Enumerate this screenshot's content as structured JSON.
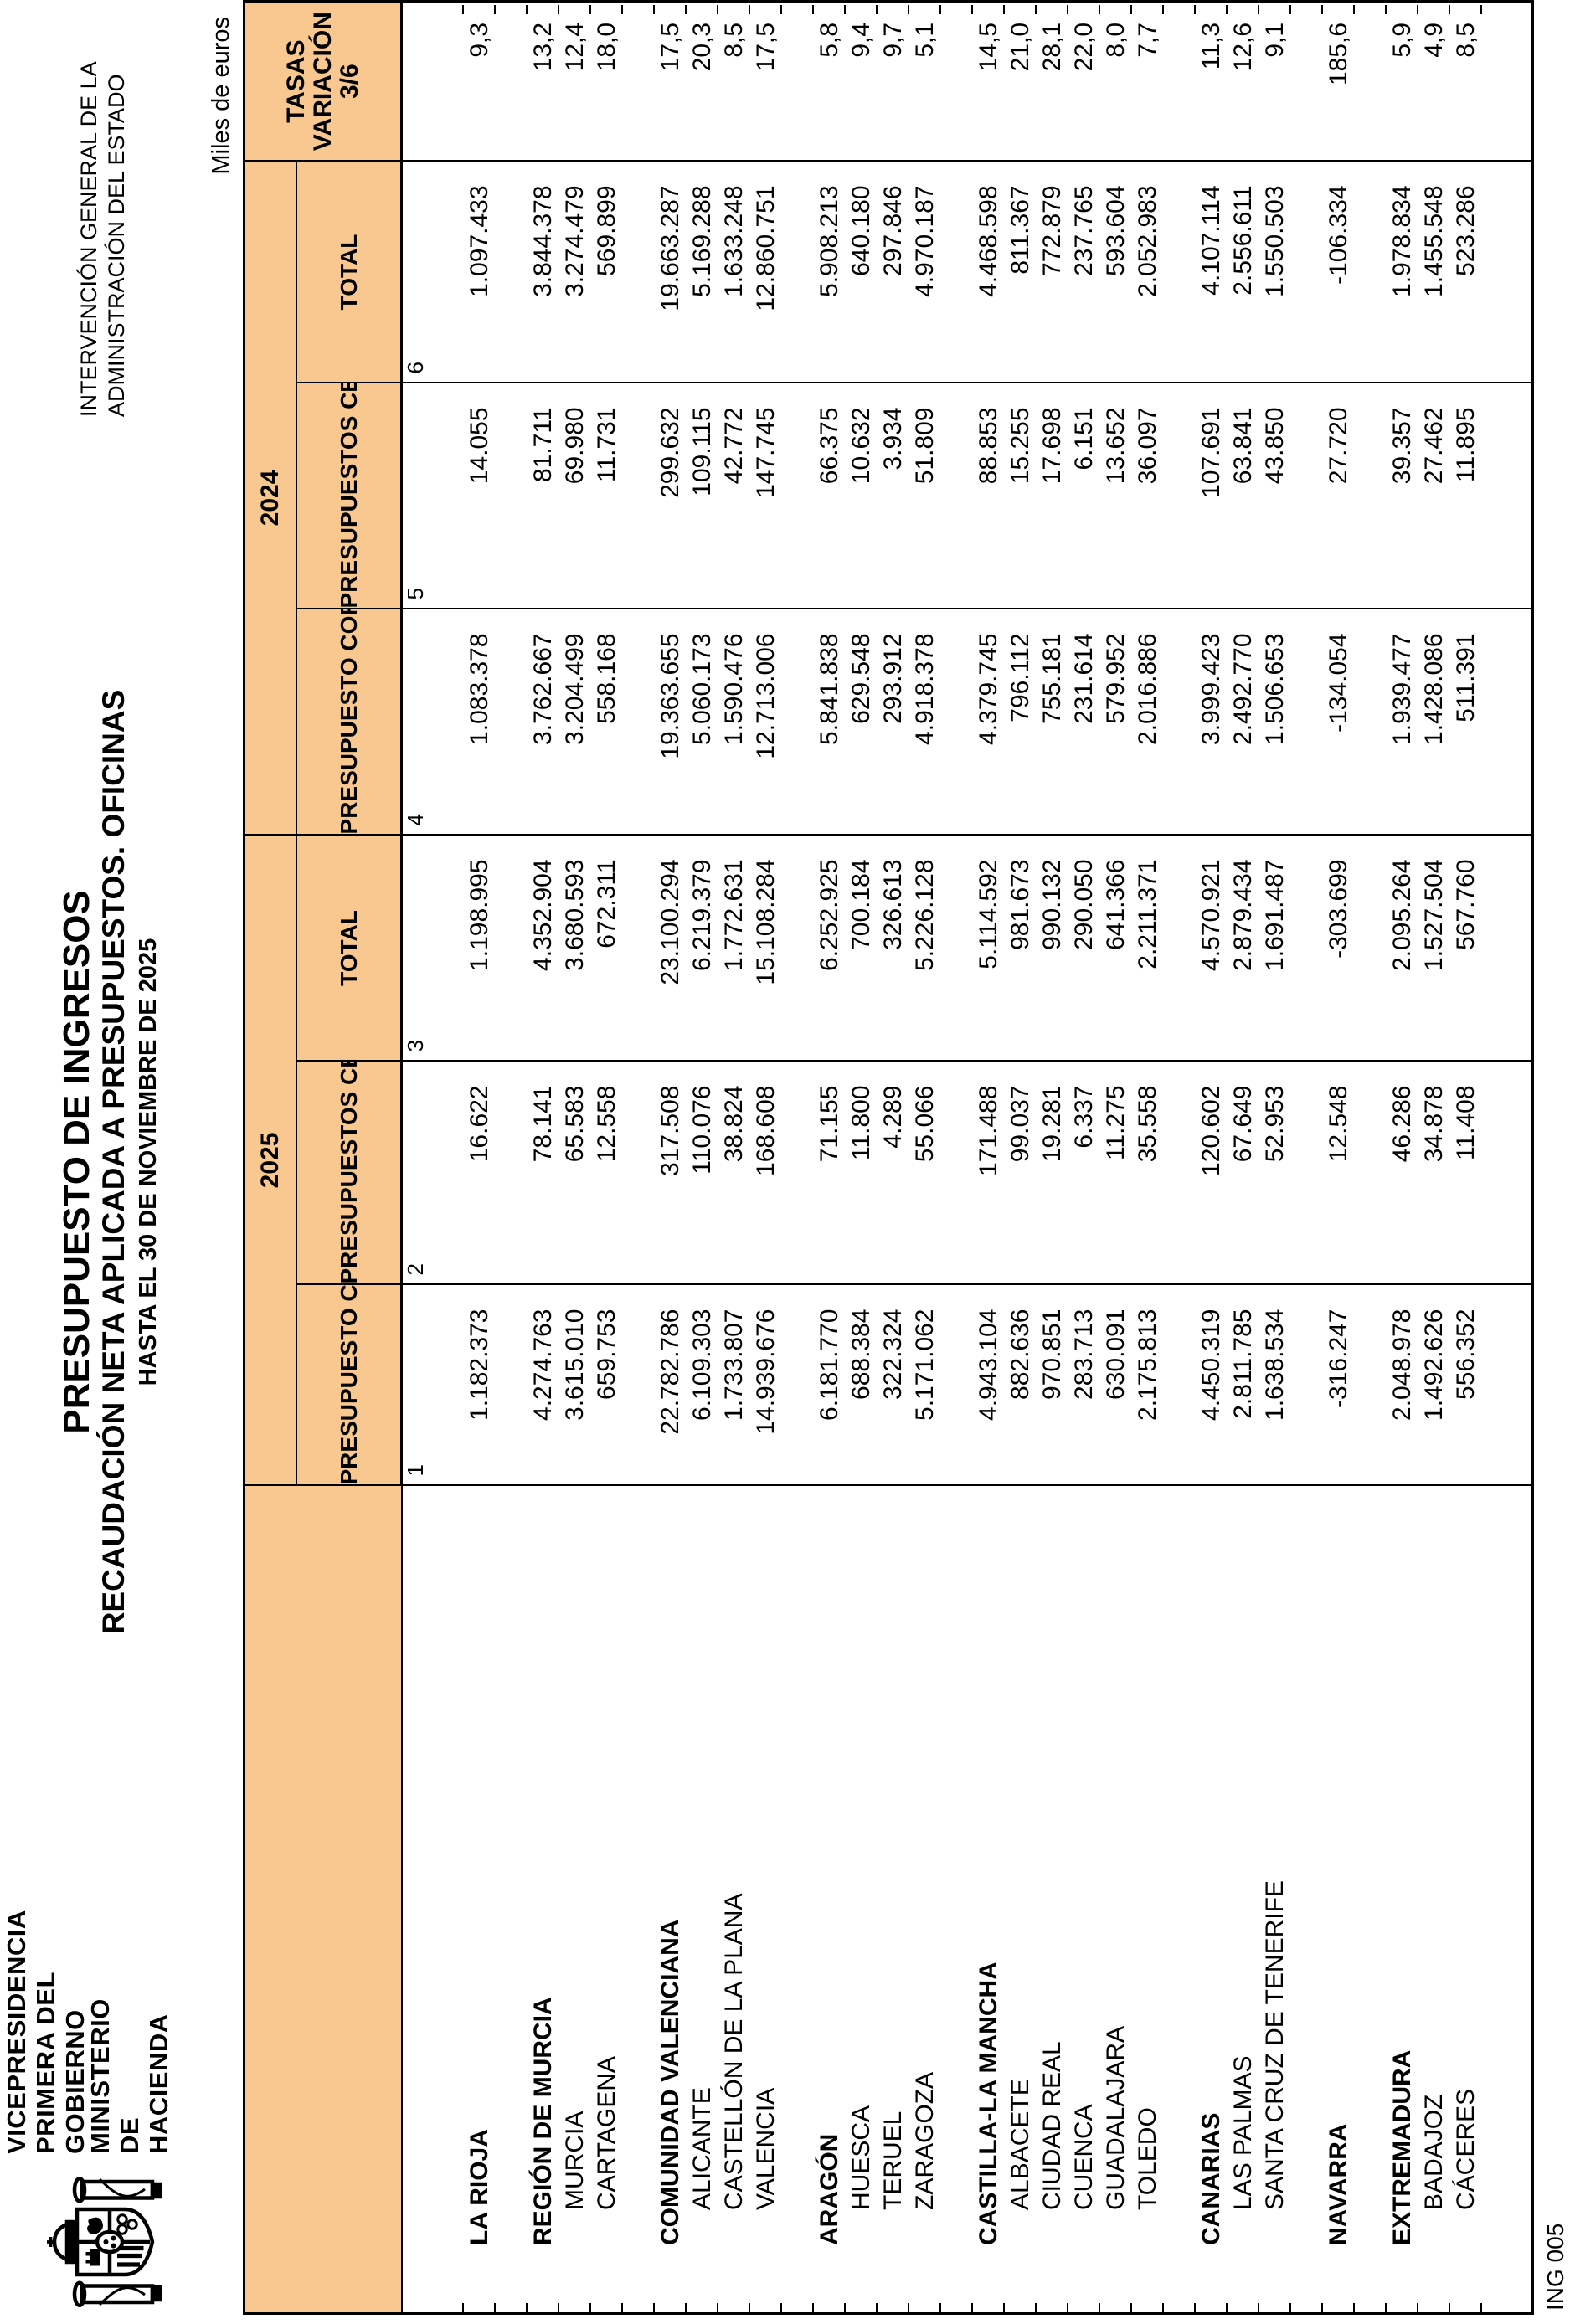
{
  "page": {
    "department": [
      "VICEPRESIDENCIA",
      "PRIMERA DEL GOBIERNO"
    ],
    "ministry": [
      "MINISTERIO",
      "DE HACIENDA"
    ],
    "agency": [
      "INTERVENCIÓN GENERAL DE LA",
      "ADMINISTRACIÓN DEL ESTADO"
    ],
    "title": "PRESUPUESTO DE INGRESOS",
    "subtitle": "RECAUDACIÓN NETA APLICADA A PRESUPUESTOS. OFICINAS",
    "period": "HASTA EL 30 DE NOVIEMBRE DE 2025",
    "units_note": "Miles de euros",
    "form_code": "ING 005"
  },
  "colors": {
    "header_fill": "#F9C891",
    "border": "#000000",
    "text": "#000000"
  },
  "table": {
    "groups": [
      {
        "year": "2025",
        "columns": [
          "PRESUPUESTO CORRIENTE",
          "PRESUPUESTOS CERRADOS",
          "TOTAL"
        ]
      },
      {
        "year": "2024",
        "columns": [
          "PRESUPUESTO CORRIENTE",
          "PRESUPUESTOS CERRADOS",
          "TOTAL"
        ]
      }
    ],
    "variation_header": [
      "TASAS",
      "VARIACIÓN",
      "3/6"
    ],
    "column_numbers": [
      "1",
      "2",
      "3",
      "4",
      "5",
      "6"
    ],
    "rows": [
      {
        "label": "LA RIOJA",
        "level": "group",
        "values": [
          "1.182.373",
          "16.622",
          "1.198.995",
          "1.083.378",
          "14.055",
          "1.097.433",
          "9,3"
        ]
      },
      {
        "spacer": true
      },
      {
        "label": "REGIÓN DE MURCIA",
        "level": "group",
        "values": [
          "4.274.763",
          "78.141",
          "4.352.904",
          "3.762.667",
          "81.711",
          "3.844.378",
          "13,2"
        ]
      },
      {
        "label": "MURCIA",
        "level": "office",
        "values": [
          "3.615.010",
          "65.583",
          "3.680.593",
          "3.204.499",
          "69.980",
          "3.274.479",
          "12,4"
        ]
      },
      {
        "label": "CARTAGENA",
        "level": "office",
        "values": [
          "659.753",
          "12.558",
          "672.311",
          "558.168",
          "11.731",
          "569.899",
          "18,0"
        ]
      },
      {
        "spacer": true
      },
      {
        "label": "COMUNIDAD VALENCIANA",
        "level": "group",
        "values": [
          "22.782.786",
          "317.508",
          "23.100.294",
          "19.363.655",
          "299.632",
          "19.663.287",
          "17,5"
        ]
      },
      {
        "label": "ALICANTE",
        "level": "office",
        "values": [
          "6.109.303",
          "110.076",
          "6.219.379",
          "5.060.173",
          "109.115",
          "5.169.288",
          "20,3"
        ]
      },
      {
        "label": "CASTELLÓN DE LA PLANA",
        "level": "office",
        "values": [
          "1.733.807",
          "38.824",
          "1.772.631",
          "1.590.476",
          "42.772",
          "1.633.248",
          "8,5"
        ]
      },
      {
        "label": "VALENCIA",
        "level": "office",
        "values": [
          "14.939.676",
          "168.608",
          "15.108.284",
          "12.713.006",
          "147.745",
          "12.860.751",
          "17,5"
        ]
      },
      {
        "spacer": true
      },
      {
        "label": "ARAGÓN",
        "level": "group",
        "values": [
          "6.181.770",
          "71.155",
          "6.252.925",
          "5.841.838",
          "66.375",
          "5.908.213",
          "5,8"
        ]
      },
      {
        "label": "HUESCA",
        "level": "office",
        "values": [
          "688.384",
          "11.800",
          "700.184",
          "629.548",
          "10.632",
          "640.180",
          "9,4"
        ]
      },
      {
        "label": "TERUEL",
        "level": "office",
        "values": [
          "322.324",
          "4.289",
          "326.613",
          "293.912",
          "3.934",
          "297.846",
          "9,7"
        ]
      },
      {
        "label": "ZARAGOZA",
        "level": "office",
        "values": [
          "5.171.062",
          "55.066",
          "5.226.128",
          "4.918.378",
          "51.809",
          "4.970.187",
          "5,1"
        ]
      },
      {
        "spacer": true
      },
      {
        "label": "CASTILLA-LA MANCHA",
        "level": "group",
        "values": [
          "4.943.104",
          "171.488",
          "5.114.592",
          "4.379.745",
          "88.853",
          "4.468.598",
          "14,5"
        ]
      },
      {
        "label": "ALBACETE",
        "level": "office",
        "values": [
          "882.636",
          "99.037",
          "981.673",
          "796.112",
          "15.255",
          "811.367",
          "21,0"
        ]
      },
      {
        "label": "CIUDAD REAL",
        "level": "office",
        "values": [
          "970.851",
          "19.281",
          "990.132",
          "755.181",
          "17.698",
          "772.879",
          "28,1"
        ]
      },
      {
        "label": "CUENCA",
        "level": "office",
        "values": [
          "283.713",
          "6.337",
          "290.050",
          "231.614",
          "6.151",
          "237.765",
          "22,0"
        ]
      },
      {
        "label": "GUADALAJARA",
        "level": "office",
        "values": [
          "630.091",
          "11.275",
          "641.366",
          "579.952",
          "13.652",
          "593.604",
          "8,0"
        ]
      },
      {
        "label": "TOLEDO",
        "level": "office",
        "values": [
          "2.175.813",
          "35.558",
          "2.211.371",
          "2.016.886",
          "36.097",
          "2.052.983",
          "7,7"
        ]
      },
      {
        "spacer": true
      },
      {
        "label": "CANARIAS",
        "level": "group",
        "values": [
          "4.450.319",
          "120.602",
          "4.570.921",
          "3.999.423",
          "107.691",
          "4.107.114",
          "11,3"
        ]
      },
      {
        "label": "LAS PALMAS",
        "level": "office",
        "values": [
          "2.811.785",
          "67.649",
          "2.879.434",
          "2.492.770",
          "63.841",
          "2.556.611",
          "12,6"
        ]
      },
      {
        "label": "SANTA CRUZ DE TENERIFE",
        "level": "office",
        "values": [
          "1.638.534",
          "52.953",
          "1.691.487",
          "1.506.653",
          "43.850",
          "1.550.503",
          "9,1"
        ]
      },
      {
        "spacer": true
      },
      {
        "label": "NAVARRA",
        "level": "group",
        "values": [
          "-316.247",
          "12.548",
          "-303.699",
          "-134.054",
          "27.720",
          "-106.334",
          "185,6"
        ]
      },
      {
        "spacer": true
      },
      {
        "label": "EXTREMADURA",
        "level": "group",
        "values": [
          "2.048.978",
          "46.286",
          "2.095.264",
          "1.939.477",
          "39.357",
          "1.978.834",
          "5,9"
        ]
      },
      {
        "label": "BADAJOZ",
        "level": "office",
        "values": [
          "1.492.626",
          "34.878",
          "1.527.504",
          "1.428.086",
          "27.462",
          "1.455.548",
          "4,9"
        ]
      },
      {
        "label": "CÁCERES",
        "level": "office",
        "values": [
          "556.352",
          "11.408",
          "567.760",
          "511.391",
          "11.895",
          "523.286",
          "8,5"
        ]
      }
    ]
  }
}
